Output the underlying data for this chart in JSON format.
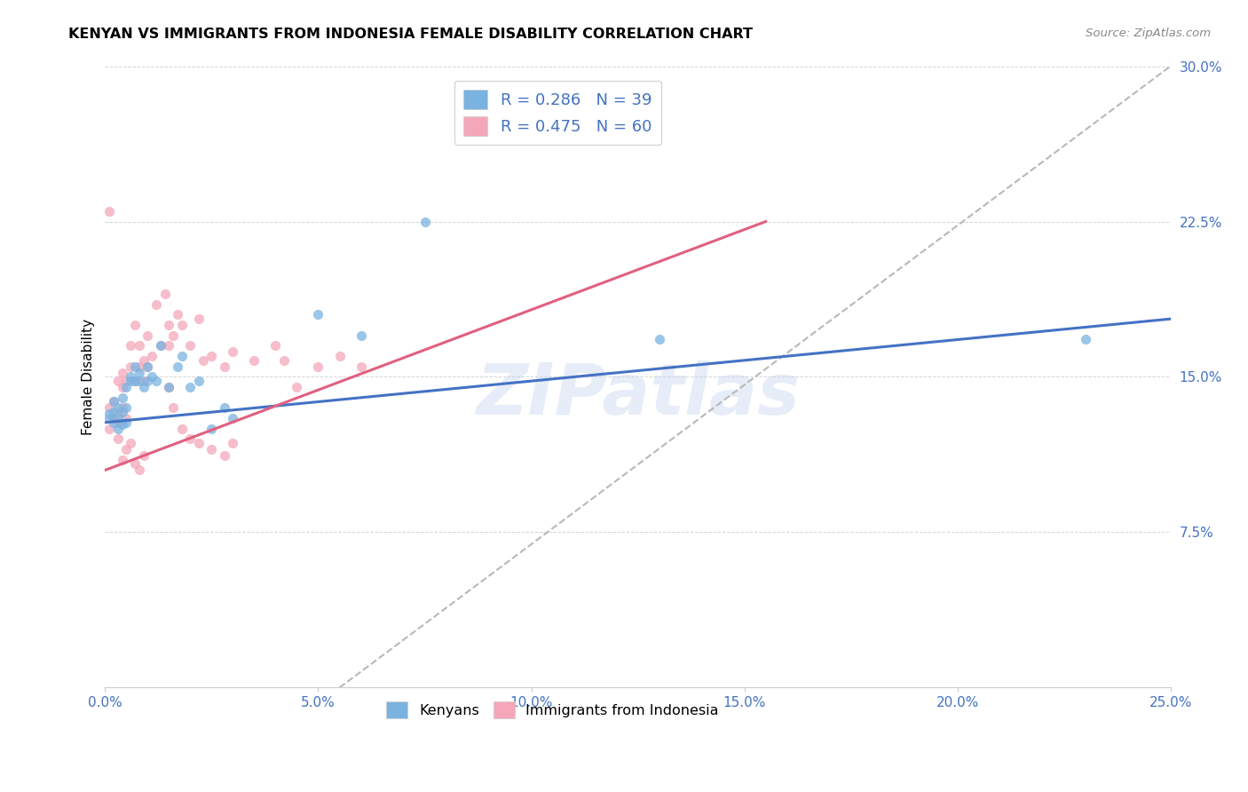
{
  "title": "KENYAN VS IMMIGRANTS FROM INDONESIA FEMALE DISABILITY CORRELATION CHART",
  "source": "Source: ZipAtlas.com",
  "ylabel": "Female Disability",
  "xlim": [
    0.0,
    0.25
  ],
  "ylim": [
    0.0,
    0.3
  ],
  "xtick_labels": [
    "0.0%",
    "5.0%",
    "10.0%",
    "15.0%",
    "20.0%",
    "25.0%"
  ],
  "xtick_vals": [
    0.0,
    0.05,
    0.1,
    0.15,
    0.2,
    0.25
  ],
  "ytick_labels": [
    "7.5%",
    "15.0%",
    "22.5%",
    "30.0%"
  ],
  "ytick_vals": [
    0.075,
    0.15,
    0.225,
    0.3
  ],
  "watermark": "ZIPatlas",
  "kenyan_color": "#7ab3e0",
  "indonesia_color": "#f4a7b9",
  "kenyan_line_color": "#4472c4",
  "indonesia_line_color": "#e06080",
  "diagonal_color": "#b8b8b8",
  "kenyan_N": 39,
  "indonesia_N": 60,
  "kenyan_R": 0.286,
  "indonesia_R": 0.475,
  "kenyan_line": {
    "x0": 0.0,
    "y0": 0.128,
    "x1": 0.25,
    "y1": 0.178
  },
  "indonesia_line": {
    "x0": 0.0,
    "y0": 0.105,
    "x1": 0.155,
    "y1": 0.225
  },
  "diagonal_line": {
    "x0": 0.055,
    "y0": 0.0,
    "x1": 0.25,
    "y1": 0.3
  },
  "kenyan_scatter_x": [
    0.001,
    0.001,
    0.002,
    0.002,
    0.002,
    0.003,
    0.003,
    0.003,
    0.004,
    0.004,
    0.004,
    0.005,
    0.005,
    0.005,
    0.006,
    0.006,
    0.007,
    0.007,
    0.008,
    0.008,
    0.009,
    0.01,
    0.01,
    0.011,
    0.012,
    0.013,
    0.015,
    0.017,
    0.018,
    0.02,
    0.022,
    0.025,
    0.028,
    0.03,
    0.05,
    0.06,
    0.075,
    0.13,
    0.23
  ],
  "kenyan_scatter_y": [
    0.13,
    0.132,
    0.128,
    0.133,
    0.138,
    0.125,
    0.13,
    0.135,
    0.127,
    0.133,
    0.14,
    0.128,
    0.135,
    0.145,
    0.148,
    0.15,
    0.155,
    0.148,
    0.148,
    0.152,
    0.145,
    0.148,
    0.155,
    0.15,
    0.148,
    0.165,
    0.145,
    0.155,
    0.16,
    0.145,
    0.148,
    0.125,
    0.135,
    0.13,
    0.18,
    0.17,
    0.225,
    0.168,
    0.168
  ],
  "indonesia_scatter_x": [
    0.001,
    0.001,
    0.001,
    0.002,
    0.002,
    0.003,
    0.003,
    0.003,
    0.004,
    0.004,
    0.004,
    0.005,
    0.005,
    0.006,
    0.006,
    0.007,
    0.007,
    0.008,
    0.008,
    0.009,
    0.009,
    0.01,
    0.01,
    0.011,
    0.012,
    0.013,
    0.014,
    0.015,
    0.015,
    0.016,
    0.017,
    0.018,
    0.02,
    0.022,
    0.023,
    0.025,
    0.028,
    0.03,
    0.035,
    0.04,
    0.042,
    0.045,
    0.05,
    0.055,
    0.06,
    0.015,
    0.016,
    0.018,
    0.02,
    0.022,
    0.025,
    0.028,
    0.03,
    0.003,
    0.004,
    0.005,
    0.006,
    0.007,
    0.008,
    0.009
  ],
  "indonesia_scatter_y": [
    0.125,
    0.23,
    0.135,
    0.13,
    0.138,
    0.128,
    0.132,
    0.148,
    0.145,
    0.152,
    0.135,
    0.13,
    0.148,
    0.155,
    0.165,
    0.148,
    0.175,
    0.155,
    0.165,
    0.148,
    0.158,
    0.155,
    0.17,
    0.16,
    0.185,
    0.165,
    0.19,
    0.165,
    0.175,
    0.17,
    0.18,
    0.175,
    0.165,
    0.178,
    0.158,
    0.16,
    0.155,
    0.162,
    0.158,
    0.165,
    0.158,
    0.145,
    0.155,
    0.16,
    0.155,
    0.145,
    0.135,
    0.125,
    0.12,
    0.118,
    0.115,
    0.112,
    0.118,
    0.12,
    0.11,
    0.115,
    0.118,
    0.108,
    0.105,
    0.112
  ]
}
